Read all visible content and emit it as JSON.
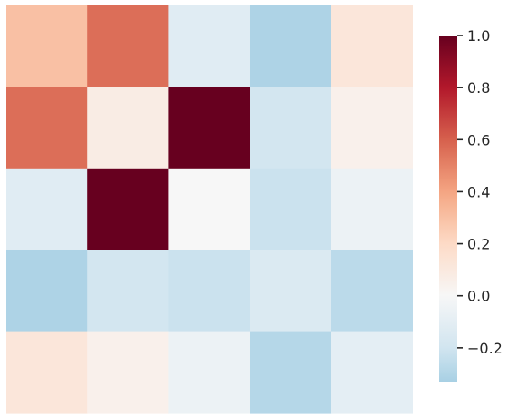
{
  "chart_data": {
    "type": "heatmap",
    "rows": 5,
    "cols": 5,
    "values": [
      [
        0.3,
        0.56,
        -0.12,
        -0.31,
        0.12
      ],
      [
        0.56,
        0.08,
        1.0,
        -0.19,
        0.05
      ],
      [
        -0.12,
        1.0,
        0.0,
        -0.22,
        -0.06
      ],
      [
        -0.31,
        -0.19,
        -0.22,
        -0.15,
        -0.27
      ],
      [
        0.12,
        0.05,
        -0.06,
        -0.29,
        -0.1
      ]
    ],
    "colorscale": "RdBu_r",
    "vmin": -0.33,
    "vmax": 1.0,
    "center": 0,
    "colorbar": {
      "ticks": [
        1.0,
        0.8,
        0.6,
        0.4,
        0.2,
        0.0,
        -0.2
      ],
      "tick_labels": [
        "1.0",
        "0.8",
        "0.6",
        "0.4",
        "0.2",
        "0.0",
        "−0.2"
      ]
    },
    "xlabel": "",
    "ylabel": "",
    "title": ""
  }
}
